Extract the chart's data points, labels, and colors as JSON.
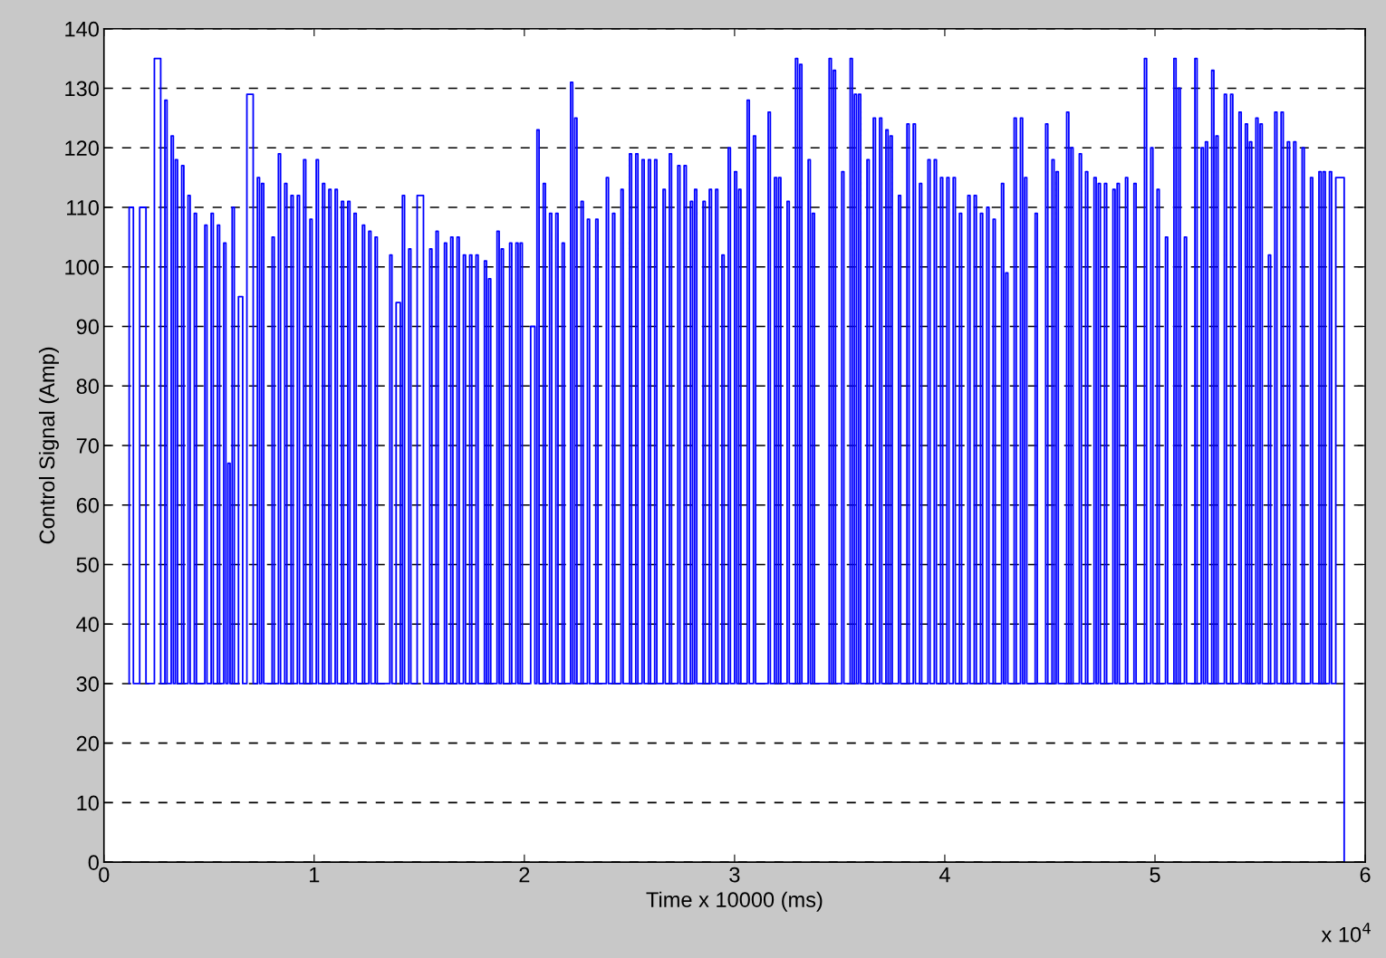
{
  "chart_data": {
    "type": "step",
    "xlabel": "Time x 10000 (ms)",
    "ylabel": "Control Signal (Amp)",
    "xlim": [
      0,
      6
    ],
    "xticks": [
      0,
      1,
      2,
      3,
      4,
      5,
      6
    ],
    "ylim": [
      0,
      140
    ],
    "yticks": [
      0,
      10,
      20,
      30,
      40,
      50,
      60,
      70,
      80,
      90,
      100,
      110,
      120,
      130,
      140
    ],
    "grid": "y",
    "line_style": "solid",
    "annotations": [
      "x 10$^{4}$"
    ],
    "series": [
      {
        "color": "#0000ff",
        "x": [
          0.12,
          0.12,
          0.14,
          0.17,
          0.2,
          0.24,
          0.27,
          0.29,
          0.3,
          0.32,
          0.33,
          0.34,
          0.35,
          0.37,
          0.38,
          0.4,
          0.41,
          0.43,
          0.44,
          0.48,
          0.49,
          0.51,
          0.52,
          0.54,
          0.55,
          0.57,
          0.58,
          0.59,
          0.6,
          0.61,
          0.62,
          0.64,
          0.66,
          0.68,
          0.71,
          0.73,
          0.74,
          0.75,
          0.76,
          0.8,
          0.81,
          0.83,
          0.84,
          0.86,
          0.87,
          0.89,
          0.9,
          0.92,
          0.93,
          0.95,
          0.96,
          0.98,
          0.99,
          1.01,
          1.02,
          1.04,
          1.05,
          1.07,
          1.08,
          1.1,
          1.11,
          1.13,
          1.14,
          1.16,
          1.17,
          1.19,
          1.2,
          1.23,
          1.24,
          1.26,
          1.27,
          1.29,
          1.3,
          1.36,
          1.37,
          1.39,
          1.41,
          1.42,
          1.43,
          1.45,
          1.46,
          1.49,
          1.52,
          1.55,
          1.56,
          1.58,
          1.59,
          1.62,
          1.63,
          1.65,
          1.66,
          1.68,
          1.69,
          1.71,
          1.72,
          1.74,
          1.75,
          1.77,
          1.78,
          1.81,
          1.82,
          1.83,
          1.84,
          1.87,
          1.88,
          1.89,
          1.9,
          1.93,
          1.94,
          1.96,
          1.97,
          1.98,
          1.99,
          2.03,
          2.05,
          2.06,
          2.07,
          2.09,
          2.1,
          2.12,
          2.13,
          2.15,
          2.16,
          2.18,
          2.19,
          2.22,
          2.23,
          2.24,
          2.25,
          2.27,
          2.28,
          2.3,
          2.31,
          2.34,
          2.35,
          2.39,
          2.4,
          2.42,
          2.43,
          2.46,
          2.47,
          2.5,
          2.51,
          2.53,
          2.54,
          2.56,
          2.57,
          2.59,
          2.6,
          2.62,
          2.63,
          2.66,
          2.67,
          2.69,
          2.7,
          2.73,
          2.74,
          2.76,
          2.77,
          2.79,
          2.8,
          2.81,
          2.82,
          2.85,
          2.86,
          2.88,
          2.89,
          2.91,
          2.92,
          2.94,
          2.95,
          2.97,
          2.98,
          3.0,
          3.01,
          3.02,
          3.03,
          3.06,
          3.07,
          3.09,
          3.1,
          3.16,
          3.17,
          3.19,
          3.2,
          3.21,
          3.22,
          3.25,
          3.26,
          3.29,
          3.3,
          3.31,
          3.32,
          3.35,
          3.36,
          3.37,
          3.38,
          3.45,
          3.46,
          3.47,
          3.48,
          3.51,
          3.52,
          3.55,
          3.56,
          3.57,
          3.58,
          3.59,
          3.6,
          3.63,
          3.64,
          3.66,
          3.67,
          3.69,
          3.7,
          3.72,
          3.73,
          3.74,
          3.75,
          3.78,
          3.79,
          3.82,
          3.83,
          3.85,
          3.86,
          3.88,
          3.89,
          3.92,
          3.93,
          3.95,
          3.96,
          3.98,
          3.99,
          4.01,
          4.02,
          4.04,
          4.05,
          4.07,
          4.08,
          4.11,
          4.12,
          4.14,
          4.15,
          4.17,
          4.18,
          4.2,
          4.21,
          4.23,
          4.24,
          4.27,
          4.28,
          4.29,
          4.3,
          4.33,
          4.34,
          4.36,
          4.37,
          4.38,
          4.39,
          4.43,
          4.44,
          4.48,
          4.49,
          4.51,
          4.52,
          4.53,
          4.54,
          4.58,
          4.59,
          4.6,
          4.61,
          4.64,
          4.65,
          4.67,
          4.68,
          4.71,
          4.72,
          4.73,
          4.74,
          4.76,
          4.77,
          4.8,
          4.81,
          4.82,
          4.83,
          4.86,
          4.87,
          4.9,
          4.91,
          4.95,
          4.96,
          4.98,
          4.99,
          5.01,
          5.02,
          5.05,
          5.06,
          5.09,
          5.1,
          5.11,
          5.12,
          5.14,
          5.15,
          5.19,
          5.2,
          5.22,
          5.23,
          5.24,
          5.25,
          5.27,
          5.28,
          5.29,
          5.3,
          5.33,
          5.34,
          5.36,
          5.37,
          5.4,
          5.41,
          5.43,
          5.44,
          5.45,
          5.46,
          5.48,
          5.49,
          5.5,
          5.51,
          5.54,
          5.55,
          5.57,
          5.58,
          5.6,
          5.61,
          5.63,
          5.64,
          5.66,
          5.67,
          5.7,
          5.71,
          5.74,
          5.75,
          5.78,
          5.79,
          5.8,
          5.81,
          5.83,
          5.84,
          5.86,
          5.9,
          5.9
        ],
        "values": [
          30,
          110,
          30,
          110,
          30,
          135,
          30,
          128,
          30,
          122,
          30,
          118,
          30,
          117,
          30,
          112,
          30,
          109,
          30,
          107,
          30,
          109,
          30,
          107,
          30,
          104,
          30,
          67,
          30,
          110,
          30,
          95,
          30,
          129,
          30,
          115,
          30,
          114,
          30,
          105,
          30,
          119,
          30,
          114,
          30,
          112,
          30,
          112,
          30,
          118,
          30,
          108,
          30,
          118,
          30,
          114,
          30,
          113,
          30,
          113,
          30,
          111,
          30,
          111,
          30,
          109,
          30,
          107,
          30,
          106,
          30,
          105,
          30,
          102,
          30,
          94,
          30,
          112,
          30,
          103,
          30,
          112,
          30,
          103,
          30,
          106,
          30,
          104,
          30,
          105,
          30,
          105,
          30,
          102,
          30,
          102,
          30,
          102,
          30,
          101,
          30,
          98,
          30,
          106,
          30,
          103,
          30,
          104,
          30,
          104,
          30,
          104,
          30,
          90,
          30,
          123,
          30,
          114,
          30,
          109,
          30,
          109,
          30,
          104,
          30,
          131,
          30,
          125,
          30,
          111,
          30,
          108,
          30,
          108,
          30,
          115,
          30,
          109,
          30,
          113,
          30,
          119,
          30,
          119,
          30,
          118,
          30,
          118,
          30,
          118,
          30,
          113,
          30,
          119,
          30,
          117,
          30,
          117,
          30,
          111,
          30,
          113,
          30,
          111,
          30,
          113,
          30,
          113,
          30,
          102,
          30,
          120,
          30,
          116,
          30,
          113,
          30,
          128,
          30,
          122,
          30,
          126,
          30,
          115,
          30,
          115,
          30,
          111,
          30,
          135,
          30,
          134,
          30,
          118,
          30,
          109,
          30,
          135,
          30,
          133,
          30,
          116,
          30,
          135,
          30,
          129,
          30,
          129,
          30,
          118,
          30,
          125,
          30,
          125,
          30,
          123,
          30,
          122,
          30,
          112,
          30,
          124,
          30,
          124,
          30,
          114,
          30,
          118,
          30,
          118,
          30,
          115,
          30,
          115,
          30,
          115,
          30,
          109,
          30,
          112,
          30,
          112,
          30,
          109,
          30,
          110,
          30,
          108,
          30,
          114,
          30,
          99,
          30,
          125,
          30,
          125,
          30,
          115,
          30,
          109,
          30,
          124,
          30,
          118,
          30,
          116,
          30,
          126,
          30,
          120,
          30,
          119,
          30,
          116,
          30,
          115,
          30,
          114,
          30,
          114,
          30,
          113,
          30,
          114,
          30,
          115,
          30,
          114,
          30,
          135,
          30,
          120,
          30,
          113,
          30,
          105,
          30,
          135,
          30,
          130,
          30,
          105,
          30,
          135,
          30,
          120,
          30,
          121,
          30,
          133,
          30,
          122,
          30,
          129,
          30,
          129,
          30,
          126,
          30,
          124,
          30,
          121,
          30,
          125,
          30,
          124,
          30,
          102,
          30,
          126,
          30,
          126,
          30,
          121,
          30,
          121,
          30,
          120,
          30,
          115,
          30,
          116,
          30,
          116,
          30,
          116,
          30,
          115,
          30,
          0
        ]
      }
    ]
  }
}
